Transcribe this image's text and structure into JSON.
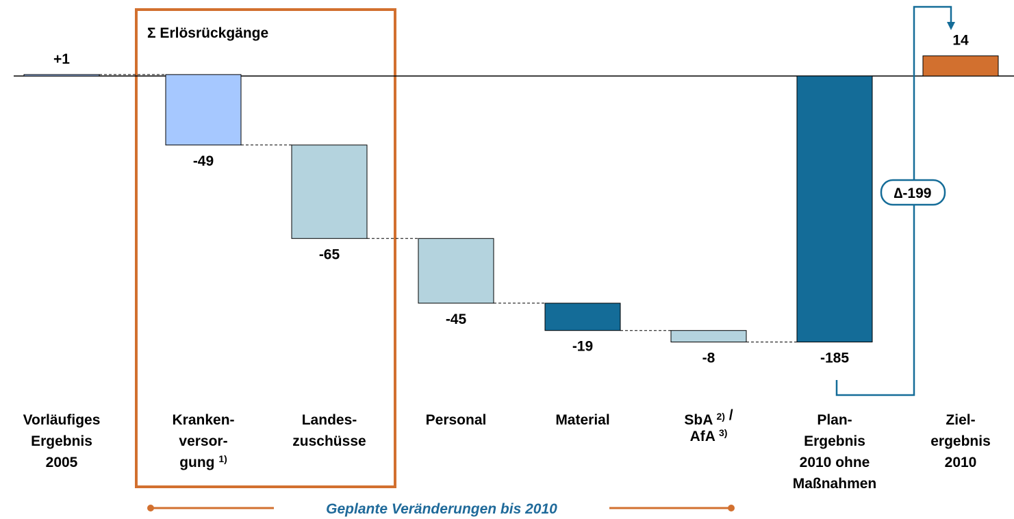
{
  "chart_data": {
    "type": "waterfall",
    "title": "Σ Erlösrückgänge",
    "subtitle": "Geplante Veränderungen bis 2010",
    "annotation": "∆-199",
    "categories": [
      "Vorläufiges\nErgebnis\n2005",
      "Kranken-\nversor-\ngung 1)",
      "Landes-\nzuschüsse",
      "Personal",
      "Material",
      "SbA 2) /\nAfA 3)",
      "Plan-\nErgebnis\n2010 ohne\nMaßnahmen",
      "Ziel-\nergebnis\n2010"
    ],
    "values": [
      1,
      -49,
      -65,
      -45,
      -19,
      -8,
      -185,
      14
    ],
    "value_labels": [
      "+1",
      "-49",
      "-65",
      "-45",
      "-19",
      "-8",
      "-185",
      "14"
    ],
    "kinds": [
      "start",
      "delta",
      "delta",
      "delta",
      "delta",
      "delta",
      "total",
      "total"
    ],
    "colors": [
      "#a6c8ff",
      "#a6c8ff",
      "#b4d3de",
      "#b4d3de",
      "#146c98",
      "#b4d3de",
      "#146c98",
      "#d2702f"
    ]
  }
}
